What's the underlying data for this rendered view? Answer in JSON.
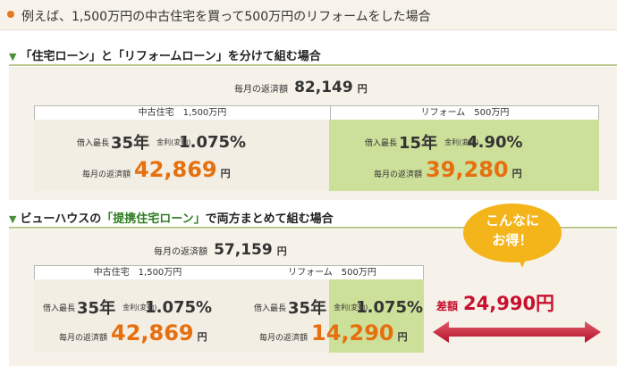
{
  "header": {
    "text": "例えば、1,500万円の中古住宅を買って500万円のリフォームをした場合"
  },
  "section1": {
    "title_prefix": "「住宅ローン」と「リフォームローン」を分けて組む場合",
    "monthly_label": "毎月の返済額",
    "monthly_total": "82,149",
    "yen": "円",
    "left_head": "中古住宅　1,500万円",
    "right_head": "リフォーム　500万円",
    "left": {
      "borrow_label": "借入最長",
      "years": "35年",
      "kinri_label": "金利(変動)",
      "rate": "1.075%",
      "pay_label": "毎月の返済額",
      "amount": "42,869",
      "yen": "円"
    },
    "right": {
      "borrow_label": "借入最長",
      "years": "15年",
      "kinri_label": "金利(変動)",
      "rate": "4.90%",
      "pay_label": "毎月の返済額",
      "amount": "39,280",
      "yen": "円"
    }
  },
  "section2": {
    "title_a": "ビューハウスの",
    "title_b": "「提携住宅ローン」",
    "title_c": "で両方まとめて組む場合",
    "monthly_label": "毎月の返済額",
    "monthly_total": "57,159",
    "yen": "円",
    "left_head": "中古住宅　1,500万円",
    "right_head": "リフォーム　500万円",
    "left": {
      "borrow_label": "借入最長",
      "years": "35年",
      "kinri_label": "金利(変動)",
      "rate": "1.075%",
      "pay_label": "毎月の返済額",
      "amount": "42,869",
      "yen": "円"
    },
    "right": {
      "borrow_label": "借入最長",
      "years": "35年",
      "kinri_label": "金利(変動)",
      "rate": "1.075%",
      "pay_label": "毎月の返済額",
      "amount": "14,290",
      "yen": "円"
    }
  },
  "callout": {
    "line1": "こんなに",
    "line2": "お得！",
    "diff_label": "差額",
    "diff_value": "24,990円"
  },
  "colors": {
    "accent_orange": "#e6700f",
    "accent_red": "#c8102e",
    "green_box": "#cde09a",
    "bubble": "#f3b51a"
  }
}
